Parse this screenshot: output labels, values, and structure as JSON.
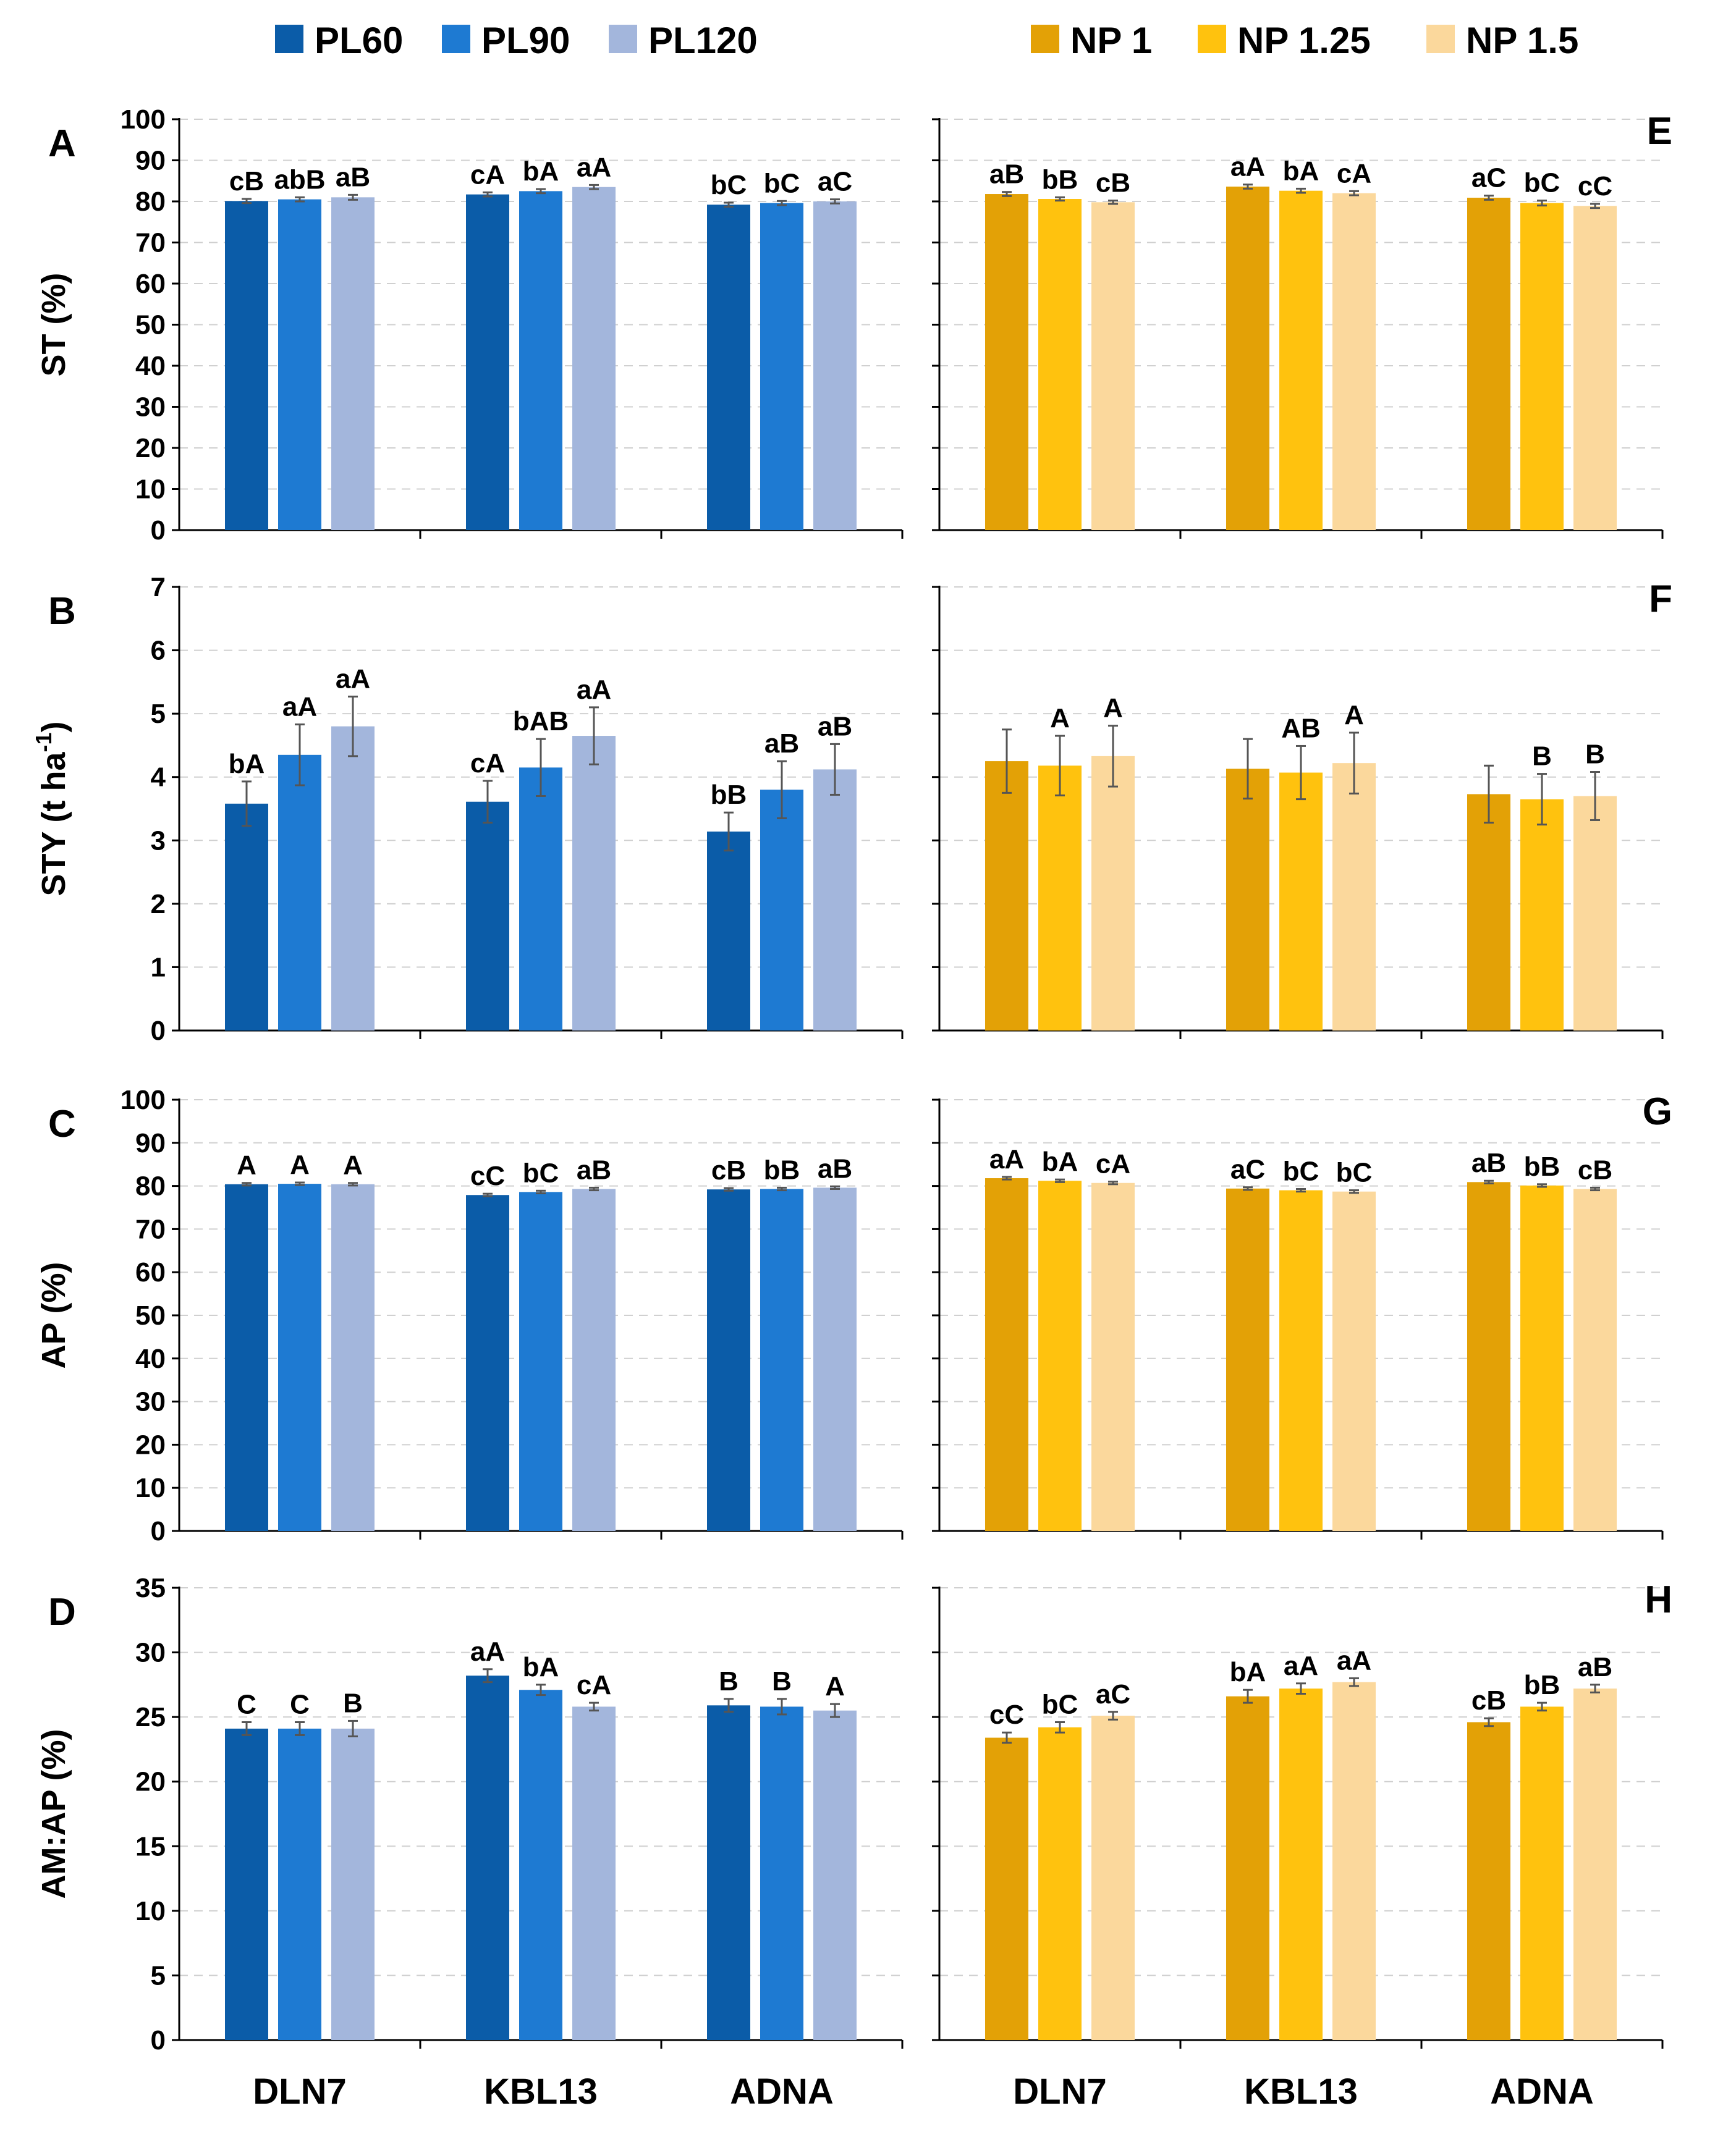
{
  "legend_left": [
    {
      "name": "PL60",
      "color": "#0B5CA8"
    },
    {
      "name": "PL90",
      "color": "#1E7AD2"
    },
    {
      "name": "PL120",
      "color": "#A3B6DC"
    }
  ],
  "legend_right": [
    {
      "name": "NP 1",
      "color": "#E3A106"
    },
    {
      "name": "NP 1.25",
      "color": "#FFC20E"
    },
    {
      "name": "NP 1.5",
      "color": "#FBD89C"
    }
  ],
  "x_categories": [
    "DLN7",
    "KBL13",
    "ADNA"
  ],
  "chart_data": [
    {
      "type": "bar",
      "panel": "A",
      "ylabel": "ST (%)",
      "ylim": [
        0,
        100
      ],
      "yticks": [
        0,
        10,
        20,
        30,
        40,
        50,
        60,
        70,
        80,
        90,
        100
      ],
      "categories": [
        "DLN7",
        "KBL13",
        "ADNA"
      ],
      "series": [
        {
          "name": "PL60",
          "values": [
            80.1,
            81.7,
            79.2
          ],
          "errors": [
            0.5,
            0.5,
            0.5
          ],
          "labels": [
            "cB",
            "cA",
            "bC"
          ]
        },
        {
          "name": "PL90",
          "values": [
            80.5,
            82.5,
            79.6
          ],
          "errors": [
            0.5,
            0.5,
            0.5
          ],
          "labels": [
            "abB",
            "bA",
            "bC"
          ]
        },
        {
          "name": "PL120",
          "values": [
            81.0,
            83.5,
            80.0
          ],
          "errors": [
            0.6,
            0.5,
            0.5
          ],
          "labels": [
            "aB",
            "aA",
            "aC"
          ]
        }
      ]
    },
    {
      "type": "bar",
      "panel": "E",
      "ylabel": "",
      "ylim": [
        0,
        100
      ],
      "yticks": [],
      "categories": [
        "DLN7",
        "KBL13",
        "ADNA"
      ],
      "series": [
        {
          "name": "NP 1",
          "values": [
            81.8,
            83.6,
            80.9
          ],
          "errors": [
            0.5,
            0.5,
            0.5
          ],
          "labels": [
            "aB",
            "aA",
            "aC"
          ]
        },
        {
          "name": "NP 1.25",
          "values": [
            80.6,
            82.6,
            79.6
          ],
          "errors": [
            0.4,
            0.5,
            0.6
          ],
          "labels": [
            "bB",
            "bA",
            "bC"
          ]
        },
        {
          "name": "NP 1.5",
          "values": [
            79.8,
            82.0,
            78.9
          ],
          "errors": [
            0.4,
            0.5,
            0.5
          ],
          "labels": [
            "cB",
            "cA",
            "cC"
          ]
        }
      ]
    },
    {
      "type": "bar",
      "panel": "B",
      "ylabel": "STY (t ha",
      "ylabel_sup": "-1",
      "ylabel_end": ")",
      "ylim": [
        0,
        7
      ],
      "yticks": [
        0,
        1,
        2,
        3,
        4,
        5,
        6,
        7
      ],
      "categories": [
        "DLN7",
        "KBL13",
        "ADNA"
      ],
      "series": [
        {
          "name": "PL60",
          "values": [
            3.58,
            3.61,
            3.14
          ],
          "errors": [
            0.35,
            0.33,
            0.3
          ],
          "labels": [
            "bA",
            "cA",
            "bB"
          ]
        },
        {
          "name": "PL90",
          "values": [
            4.35,
            4.15,
            3.8
          ],
          "errors": [
            0.48,
            0.45,
            0.45
          ],
          "labels": [
            "aA",
            "bAB",
            "aB"
          ]
        },
        {
          "name": "PL120",
          "values": [
            4.8,
            4.65,
            4.12
          ],
          "errors": [
            0.47,
            0.45,
            0.4
          ],
          "labels": [
            "aA",
            "aA",
            "aB"
          ]
        }
      ]
    },
    {
      "type": "bar",
      "panel": "F",
      "ylabel": "",
      "ylim": [
        0,
        7
      ],
      "yticks": [],
      "categories": [
        "DLN7",
        "KBL13",
        "ADNA"
      ],
      "series": [
        {
          "name": "NP 1",
          "values": [
            4.25,
            4.13,
            3.73
          ],
          "errors": [
            0.5,
            0.47,
            0.45
          ],
          "labels": [
            "",
            "",
            ""
          ]
        },
        {
          "name": "NP 1.25",
          "values": [
            4.18,
            4.07,
            3.65
          ],
          "errors": [
            0.47,
            0.42,
            0.4
          ],
          "labels": [
            "A",
            "AB",
            "B"
          ]
        },
        {
          "name": "NP 1.5",
          "values": [
            4.33,
            4.22,
            3.7
          ],
          "errors": [
            0.48,
            0.48,
            0.38
          ],
          "labels": [
            "A",
            "A",
            "B"
          ]
        }
      ]
    },
    {
      "type": "bar",
      "panel": "C",
      "ylabel": "AP (%)",
      "ylim": [
        0,
        100
      ],
      "yticks": [
        0,
        10,
        20,
        30,
        40,
        50,
        60,
        70,
        80,
        90,
        100
      ],
      "categories": [
        "DLN7",
        "KBL13",
        "ADNA"
      ],
      "series": [
        {
          "name": "PL60",
          "values": [
            80.4,
            77.9,
            79.2
          ],
          "errors": [
            0.3,
            0.3,
            0.3
          ],
          "labels": [
            "A",
            "cC",
            "cB"
          ]
        },
        {
          "name": "PL90",
          "values": [
            80.5,
            78.6,
            79.3
          ],
          "errors": [
            0.3,
            0.3,
            0.3
          ],
          "labels": [
            "A",
            "bC",
            "bB"
          ]
        },
        {
          "name": "PL120",
          "values": [
            80.4,
            79.3,
            79.6
          ],
          "errors": [
            0.3,
            0.3,
            0.3
          ],
          "labels": [
            "A",
            "aB",
            "aB"
          ]
        }
      ]
    },
    {
      "type": "bar",
      "panel": "G",
      "ylabel": "",
      "ylim": [
        0,
        100
      ],
      "yticks": [],
      "categories": [
        "DLN7",
        "KBL13",
        "ADNA"
      ],
      "series": [
        {
          "name": "NP 1",
          "values": [
            81.8,
            79.4,
            80.9
          ],
          "errors": [
            0.3,
            0.3,
            0.3
          ],
          "labels": [
            "aA",
            "aC",
            "aB"
          ]
        },
        {
          "name": "NP 1.25",
          "values": [
            81.2,
            79.0,
            80.1
          ],
          "errors": [
            0.3,
            0.3,
            0.3
          ],
          "labels": [
            "bA",
            "bC",
            "bB"
          ]
        },
        {
          "name": "NP 1.5",
          "values": [
            80.7,
            78.7,
            79.3
          ],
          "errors": [
            0.3,
            0.3,
            0.3
          ],
          "labels": [
            "cA",
            "bC",
            "cB"
          ]
        }
      ]
    },
    {
      "type": "bar",
      "panel": "D",
      "ylabel": "AM:AP (%)",
      "ylim": [
        0,
        35
      ],
      "yticks": [
        0,
        5,
        10,
        15,
        20,
        25,
        30,
        35
      ],
      "categories": [
        "DLN7",
        "KBL13",
        "ADNA"
      ],
      "series": [
        {
          "name": "PL60",
          "values": [
            24.1,
            28.2,
            25.9
          ],
          "errors": [
            0.5,
            0.5,
            0.5
          ],
          "labels": [
            "C",
            "aA",
            "B"
          ]
        },
        {
          "name": "PL90",
          "values": [
            24.1,
            27.1,
            25.8
          ],
          "errors": [
            0.5,
            0.4,
            0.6
          ],
          "labels": [
            "C",
            "bA",
            "B"
          ]
        },
        {
          "name": "PL120",
          "values": [
            24.1,
            25.8,
            25.5
          ],
          "errors": [
            0.6,
            0.3,
            0.5
          ],
          "labels": [
            "B",
            "cA",
            "A"
          ]
        }
      ]
    },
    {
      "type": "bar",
      "panel": "H",
      "ylabel": "",
      "ylim": [
        0,
        35
      ],
      "yticks": [],
      "categories": [
        "DLN7",
        "KBL13",
        "ADNA"
      ],
      "series": [
        {
          "name": "NP 1",
          "values": [
            23.4,
            26.6,
            24.6
          ],
          "errors": [
            0.4,
            0.5,
            0.3
          ],
          "labels": [
            "cC",
            "bA",
            "cB"
          ]
        },
        {
          "name": "NP 1.25",
          "values": [
            24.2,
            27.2,
            25.8
          ],
          "errors": [
            0.4,
            0.4,
            0.3
          ],
          "labels": [
            "bC",
            "aA",
            "bB"
          ]
        },
        {
          "name": "NP 1.5",
          "values": [
            25.1,
            27.7,
            27.2
          ],
          "errors": [
            0.3,
            0.3,
            0.3
          ],
          "labels": [
            "aC",
            "aA",
            "aB"
          ]
        }
      ]
    }
  ]
}
